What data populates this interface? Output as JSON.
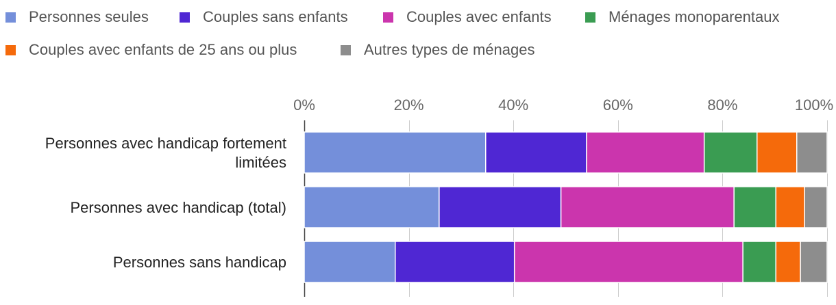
{
  "chart_data": {
    "type": "bar",
    "orientation": "horizontal",
    "stacked": true,
    "categories": [
      [
        "Personnes avec handicap fortement",
        "limitées"
      ],
      [
        "Personnes avec handicap (total)"
      ],
      [
        "Personnes sans handicap"
      ]
    ],
    "series": [
      {
        "name": "Personnes seules",
        "color": "#748fda",
        "values": [
          34.7,
          25.8,
          17.4
        ]
      },
      {
        "name": "Couples sans enfants",
        "color": "#4f27d3",
        "values": [
          19.3,
          23.3,
          22.8
        ]
      },
      {
        "name": "Couples avec enfants",
        "color": "#cb35ad",
        "values": [
          22.5,
          33.1,
          43.7
        ]
      },
      {
        "name": "Ménages monoparentaux",
        "color": "#3a9c52",
        "values": [
          10.1,
          8.0,
          6.3
        ]
      },
      {
        "name": "Couples avec enfants de 25 ans ou plus",
        "color": "#f56a0b",
        "values": [
          7.6,
          5.5,
          4.7
        ]
      },
      {
        "name": "Autres types de ménages",
        "color": "#8d8d8d",
        "values": [
          5.8,
          4.3,
          5.1
        ]
      }
    ],
    "xlim": [
      0,
      100
    ],
    "xticks": [
      0,
      20,
      40,
      60,
      80,
      100
    ],
    "tick_suffix": "%",
    "grid": true,
    "legend_position": "top"
  }
}
